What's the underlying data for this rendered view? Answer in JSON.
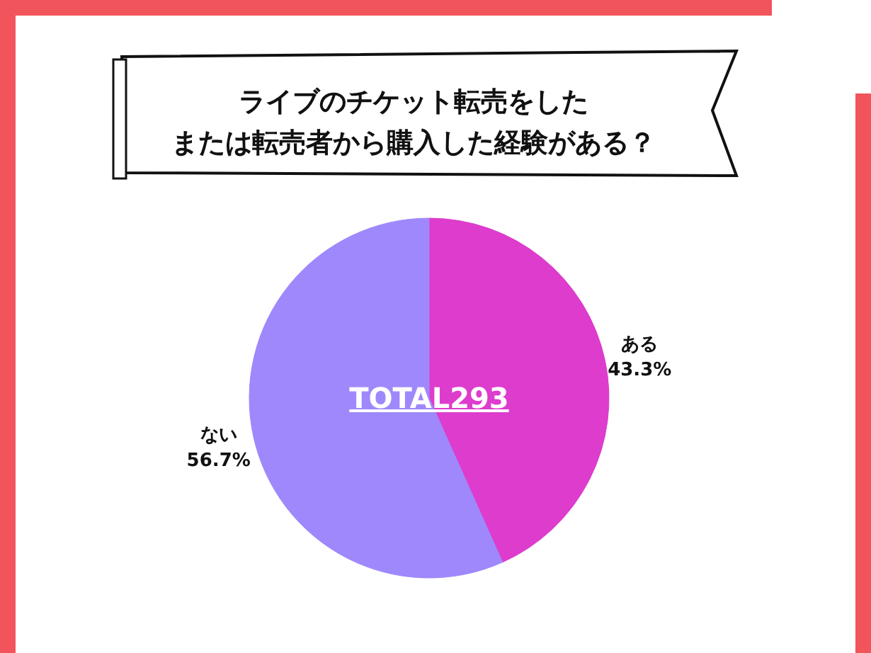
{
  "chart_data": {
    "type": "pie",
    "title": "ライブのチケット転売をした",
    "subtitle": "または転売者から購入した経験がある？",
    "categories": [
      "ある",
      "ない"
    ],
    "values": [
      43.3,
      56.7
    ],
    "colors": [
      "#dd3ccd",
      "#9f88fb"
    ],
    "value_labels": [
      "43.3%",
      "56.7%"
    ],
    "annotations": [
      "TOTAL293"
    ]
  }
}
